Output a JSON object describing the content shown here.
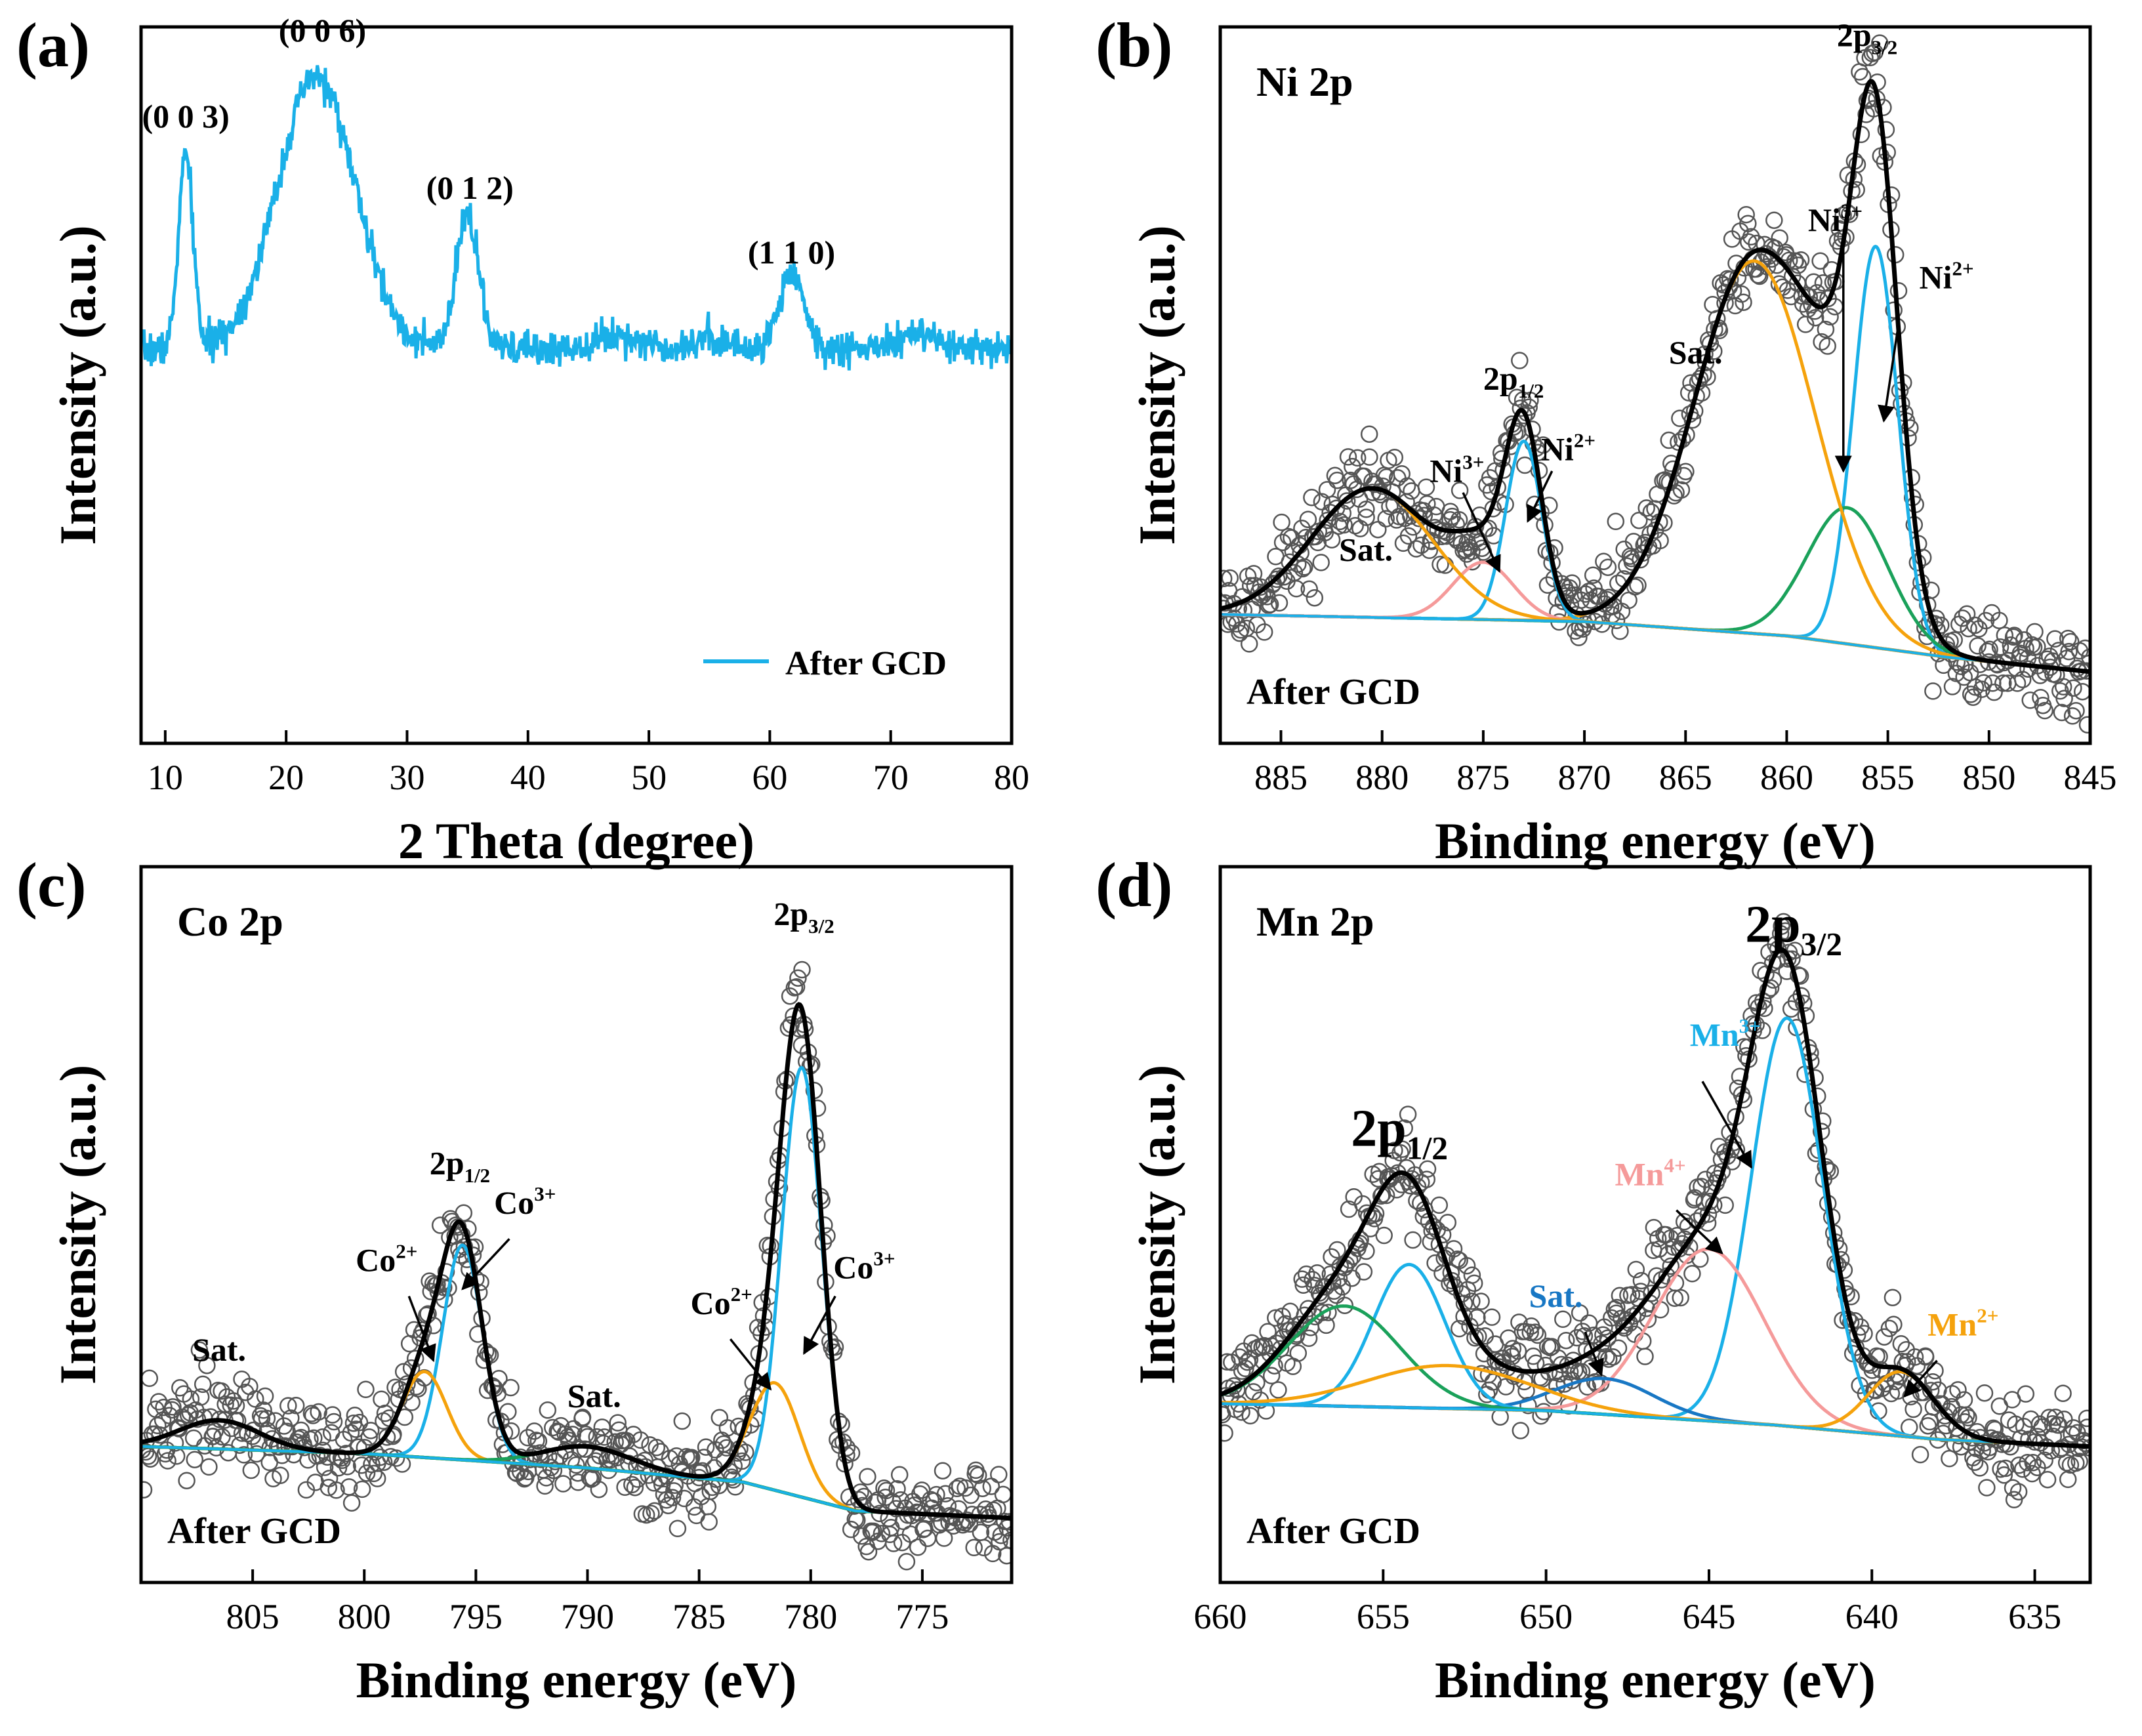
{
  "colors": {
    "cyan": "#1ab0e8",
    "orange": "#f5a20c",
    "green": "#1aa15a",
    "pink": "#f59a9a",
    "blue": "#1877c4",
    "black": "#000000",
    "gray": "#555555"
  },
  "chart_data": [
    {
      "id": "a",
      "type": "line",
      "panel_label": "(a)",
      "xlabel": "2 Theta (degree)",
      "ylabel": "Intensity (a.u.)",
      "xlim": [
        8,
        80
      ],
      "ylim": [
        0,
        100
      ],
      "xticks": [
        10,
        20,
        30,
        40,
        50,
        60,
        70,
        80
      ],
      "legend": {
        "label": "After GCD",
        "placement": "bottom-right"
      },
      "series": [
        {
          "name": "After GCD",
          "color": "cyan",
          "peaks": [
            [
              11.7,
              27,
              0.6
            ],
            [
              22.5,
              38,
              3.2
            ],
            [
              35.0,
              19,
              0.9
            ],
            [
              47.5,
              2,
              2.0
            ],
            [
              55,
              1.5,
              1.5
            ],
            [
              61.8,
              11,
              1.0
            ],
            [
              72,
              2,
              1.5
            ]
          ],
          "baseline": 55,
          "noise": 1.2
        }
      ],
      "annotations": [
        {
          "text": "(0 0 3)",
          "x": 11.7,
          "y": 86
        },
        {
          "text": "(0 0 6)",
          "x": 23.0,
          "y": 98
        },
        {
          "text": "(0 1 2)",
          "x": 35.2,
          "y": 76
        },
        {
          "text": "(1 1 0)",
          "x": 61.8,
          "y": 67
        }
      ]
    },
    {
      "id": "b",
      "type": "scatter",
      "panel_label": "(b)",
      "title": "Ni 2p",
      "xlabel": "Binding energy (eV)",
      "ylabel": "Intensity (a.u.)",
      "xlim": [
        888,
        845
      ],
      "ylim": [
        0,
        100
      ],
      "xticks": [
        885,
        880,
        875,
        870,
        865,
        860,
        855,
        850,
        845
      ],
      "sample_label": "After GCD",
      "background": [
        [
          888,
          18
        ],
        [
          870,
          17
        ],
        [
          860,
          15
        ],
        [
          852,
          12
        ],
        [
          845,
          10
        ]
      ],
      "components": [
        {
          "name": "Ni2+ 2p3/2",
          "center": 855.6,
          "height": 56,
          "width": 1.1,
          "color": "cyan"
        },
        {
          "name": "Ni3+ 2p3/2",
          "center": 857.0,
          "height": 19,
          "width": 2.0,
          "color": "green"
        },
        {
          "name": "Sat. 2p3/2",
          "center": 861.6,
          "height": 52,
          "width": 3.0,
          "color": "orange"
        },
        {
          "name": "Ni2+ 2p1/2",
          "center": 873.0,
          "height": 25,
          "width": 0.9,
          "color": "cyan"
        },
        {
          "name": "Ni3+ 2p1/2",
          "center": 875.0,
          "height": 8,
          "width": 1.5,
          "color": "pink"
        },
        {
          "name": "Sat. 2p1/2",
          "center": 880.5,
          "height": 18,
          "width": 3.0,
          "color": "orange"
        }
      ],
      "annotations": [
        {
          "text": "Ni",
          "sup": "3+",
          "x": 876.3,
          "y": 36.5
        },
        {
          "text": "2p",
          "sub": "1/2",
          "x": 873.5,
          "y": 48.5
        },
        {
          "text": "Ni",
          "sup": "2+",
          "x": 870.8,
          "y": 39.5
        },
        {
          "text": "Sat.",
          "x": 880.8,
          "y": 25.5
        },
        {
          "text": "Sat.",
          "x": 864.5,
          "y": 53
        },
        {
          "text": "Ni",
          "sup": "3+",
          "x": 857.6,
          "y": 71.5
        },
        {
          "text": "2p",
          "sub": "3/2",
          "x": 855.7,
          "y": 95.5
        },
        {
          "text": "Ni",
          "sup": "2+",
          "x": 852.1,
          "y": 63.5
        }
      ]
    },
    {
      "id": "c",
      "type": "scatter",
      "panel_label": "(c)",
      "title": "Co 2p",
      "xlabel": "Binding energy (eV)",
      "ylabel": "Intensity (a.u.)",
      "xlim": [
        810,
        771
      ],
      "ylim": [
        0,
        100
      ],
      "xticks": [
        805,
        800,
        795,
        790,
        785,
        780,
        775
      ],
      "sample_label": "After GCD",
      "background": [
        [
          810,
          19
        ],
        [
          800,
          18
        ],
        [
          790,
          16
        ],
        [
          783,
          14
        ],
        [
          778,
          10
        ],
        [
          771,
          9
        ]
      ],
      "components": [
        {
          "name": "Co3+ 2p3/2",
          "center": 780.4,
          "height": 60,
          "width": 0.9,
          "color": "cyan"
        },
        {
          "name": "Co2+ 2p3/2",
          "center": 781.6,
          "height": 15,
          "width": 1.1,
          "color": "orange"
        },
        {
          "name": "Co3+ 2p1/2",
          "center": 795.6,
          "height": 30,
          "width": 0.9,
          "color": "cyan"
        },
        {
          "name": "Co2+ 2p1/2",
          "center": 797.3,
          "height": 12,
          "width": 1.0,
          "color": "orange"
        },
        {
          "name": "Sat.",
          "center": 806.5,
          "height": 4,
          "width": 1.8,
          "color": "green"
        },
        {
          "name": "Sat.",
          "center": 790.0,
          "height": 3,
          "width": 2.0,
          "color": "green"
        }
      ],
      "annotations": [
        {
          "text": "Sat.",
          "x": 806.5,
          "y": 31
        },
        {
          "text": "Co",
          "sup": "2+",
          "x": 799.0,
          "y": 43.5
        },
        {
          "text": "2p",
          "sub": "1/2",
          "x": 795.6,
          "y": 54.5
        },
        {
          "text": "Co",
          "sup": "3+",
          "x": 792.8,
          "y": 51.5
        },
        {
          "text": "Sat.",
          "x": 789.7,
          "y": 24.5
        },
        {
          "text": "Co",
          "sup": "2+",
          "x": 784.0,
          "y": 37.5
        },
        {
          "text": "Co",
          "sup": "3+",
          "x": 777.6,
          "y": 42.5
        },
        {
          "text": "2p",
          "sub": "3/2",
          "x": 780.3,
          "y": 89.5
        }
      ]
    },
    {
      "id": "d",
      "type": "scatter",
      "panel_label": "(d)",
      "title": "Mn 2p",
      "xlabel": "Binding energy (eV)",
      "ylabel": "Intensity (a.u.)",
      "xlim": [
        660,
        633.3
      ],
      "ylim": [
        0,
        100
      ],
      "xticks": [
        660,
        655,
        650,
        645,
        640,
        635
      ],
      "sample_label": "After GCD",
      "background": [
        [
          660,
          25
        ],
        [
          650,
          24
        ],
        [
          643,
          22
        ],
        [
          638,
          20
        ],
        [
          633.3,
          19
        ]
      ],
      "components": [
        {
          "name": "Mn3+",
          "center": 642.6,
          "height": 57,
          "width": 1.1,
          "color": "cyan"
        },
        {
          "name": "Mn4+",
          "center": 645.0,
          "height": 24,
          "width": 1.7,
          "color": "pink"
        },
        {
          "name": "Mn2+",
          "center": 639.1,
          "height": 9,
          "width": 1.0,
          "color": "orange"
        },
        {
          "name": "Sat.",
          "center": 648.2,
          "height": 5,
          "width": 1.5,
          "color": "blue"
        },
        {
          "name": "2p1/2 Mn3+",
          "center": 654.2,
          "height": 20,
          "width": 1.1,
          "color": "cyan"
        },
        {
          "name": "2p1/2 Mn4+",
          "center": 656.2,
          "height": 14,
          "width": 1.7,
          "color": "green"
        },
        {
          "name": "2p1/2 Mn2+",
          "center": 653.0,
          "height": 6,
          "width": 2.5,
          "color": "orange"
        }
      ],
      "annotations": [
        {
          "text": "2p",
          "sub": "1/2",
          "x": 654.5,
          "y": 61,
          "size": "large"
        },
        {
          "text": "2p",
          "sub": "3/2",
          "x": 642.4,
          "y": 89.5,
          "size": "large"
        },
        {
          "text": "Mn",
          "sup": "3+",
          "x": 644.5,
          "y": 75,
          "color": "cyan"
        },
        {
          "text": "Mn",
          "sup": "4+",
          "x": 646.8,
          "y": 55.5,
          "color": "pink"
        },
        {
          "text": "Sat.",
          "x": 649.7,
          "y": 38.5,
          "color": "blue"
        },
        {
          "text": "Mn",
          "sup": "2+",
          "x": 637.2,
          "y": 34.5,
          "color": "orange"
        }
      ]
    }
  ]
}
